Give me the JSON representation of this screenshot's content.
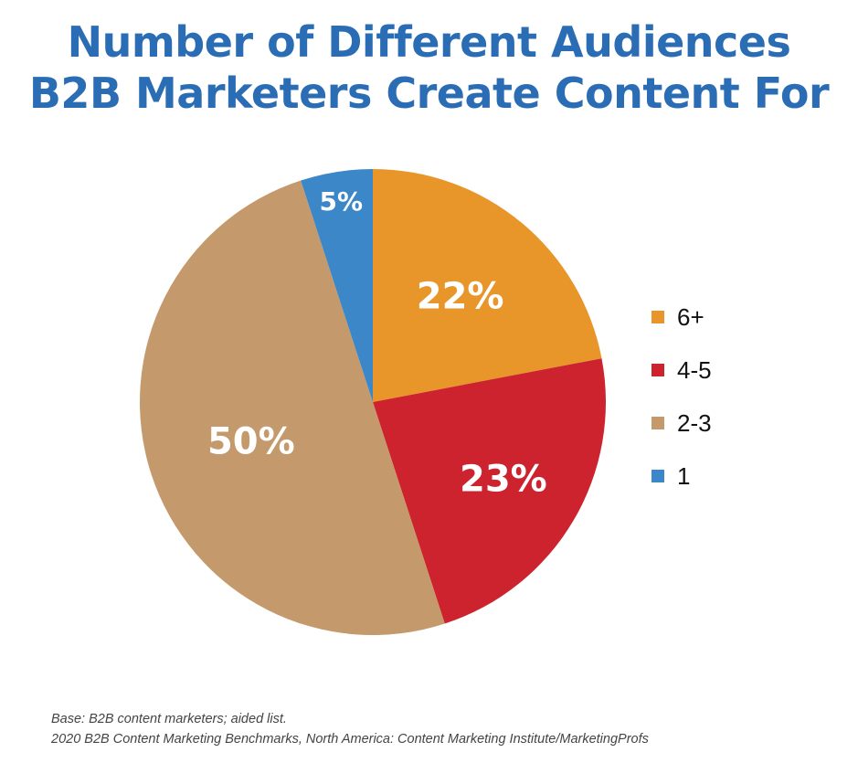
{
  "chart_data": {
    "type": "pie",
    "title_lines": [
      "Number of Different Audiences",
      "B2B Marketers Create Content For"
    ],
    "categories": [
      "6+",
      "4-5",
      "2-3",
      "1"
    ],
    "values": [
      22,
      23,
      50,
      5
    ],
    "data_labels": [
      "22%",
      "23%",
      "50%",
      "5%"
    ],
    "colors": [
      "#E8962A",
      "#CC232E",
      "#C4996B",
      "#3B87C8"
    ],
    "start": "top, clockwise",
    "legend_position": "right"
  },
  "notes": {
    "base": "Base: B2B content marketers; aided list.",
    "source": "2020 B2B Content Marketing Benchmarks, North America: Content Marketing Institute/MarketingProfs"
  }
}
